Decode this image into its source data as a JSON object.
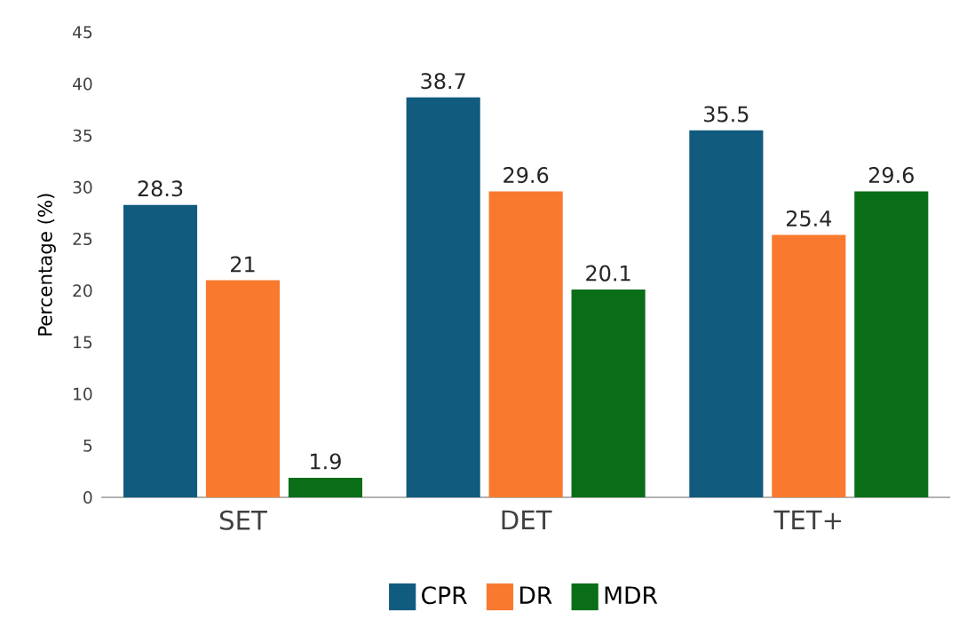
{
  "chart_data": {
    "type": "bar",
    "ylabel": "Percentage (%)",
    "categories": [
      "SET",
      "DET",
      "TET+"
    ],
    "series": [
      {
        "name": "CPR",
        "color": "#115b7f",
        "values": [
          28.3,
          38.7,
          35.5
        ]
      },
      {
        "name": "DR",
        "color": "#f97a2f",
        "values": [
          21,
          29.6,
          25.4
        ]
      },
      {
        "name": "MDR",
        "color": "#0a6e19",
        "values": [
          1.9,
          20.1,
          29.6
        ]
      }
    ],
    "ylim": [
      0,
      45
    ],
    "yticks": [
      0,
      5,
      10,
      15,
      20,
      25,
      30,
      35,
      40,
      45
    ],
    "data_labels": true,
    "legend": "bottom"
  }
}
